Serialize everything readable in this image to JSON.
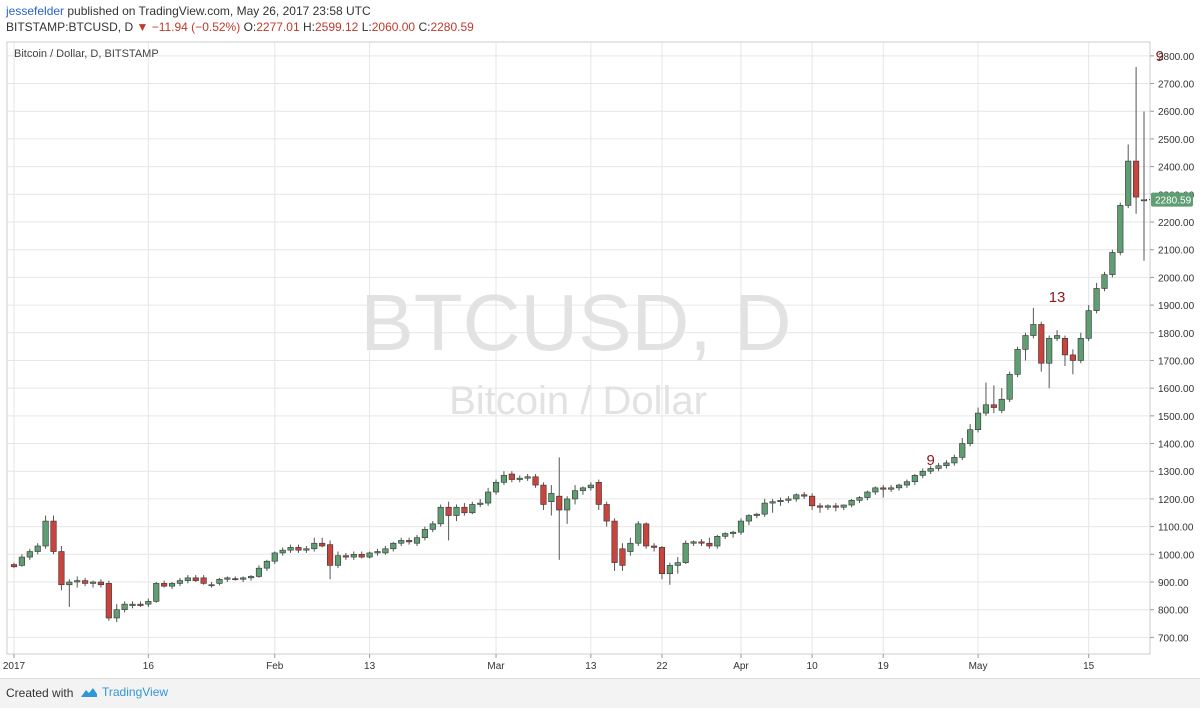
{
  "header": {
    "author": "jessefelder",
    "published": " published on TradingView.com, May 26, 2017 23:58 UTC",
    "symbol": "BITSTAMP:BTCUSD, D",
    "arrow": "▼",
    "change": "−11.94 (−0.52%)",
    "open_label": "O:",
    "open": "2277.01",
    "high_label": "H:",
    "high": "2599.12",
    "low_label": "L:",
    "low": "2060.00",
    "close_label": "C:",
    "close": "2280.59"
  },
  "footer": {
    "created_with": "Created with",
    "brand": "TradingView"
  },
  "colors": {
    "up": "#5f9e73",
    "down": "#c8443c",
    "wick": "#555555",
    "grid": "#e6e6e6",
    "label_accent": "#8b1a1a",
    "price_tag": "#5f9e73"
  },
  "chart_data": {
    "type": "candlestick",
    "title": "Bitcoin / Dollar, D, BITSTAMP",
    "watermark_main": "BTCUSD, D",
    "watermark_sub": "Bitcoin / Dollar",
    "ylim": [
      640,
      2850
    ],
    "y_ticks": [
      "700.00",
      "800.00",
      "900.00",
      "1000.00",
      "1100.00",
      "1200.00",
      "1300.00",
      "1400.00",
      "1500.00",
      "1600.00",
      "1700.00",
      "1800.00",
      "1900.00",
      "2000.00",
      "2100.00",
      "2200.00",
      "2300.00",
      "2400.00",
      "2500.00",
      "2600.00",
      "2700.00",
      "2800.00"
    ],
    "x_ticks": [
      {
        "label": "2017",
        "bar": 0
      },
      {
        "label": "16",
        "bar": 17
      },
      {
        "label": "Feb",
        "bar": 33
      },
      {
        "label": "13",
        "bar": 45
      },
      {
        "label": "Mar",
        "bar": 61
      },
      {
        "label": "13",
        "bar": 73
      },
      {
        "label": "22",
        "bar": 82
      },
      {
        "label": "Apr",
        "bar": 92
      },
      {
        "label": "10",
        "bar": 101
      },
      {
        "label": "19",
        "bar": 110
      },
      {
        "label": "May",
        "bar": 122
      },
      {
        "label": "15",
        "bar": 136
      }
    ],
    "last_price": "2280.59",
    "annotations": [
      {
        "text": "9",
        "bar": 116,
        "price": 1300
      },
      {
        "text": "13",
        "bar": 132,
        "price": 1890
      },
      {
        "text": "9",
        "bar": 145,
        "price": 2760
      }
    ],
    "candles": [
      {
        "o": 963,
        "h": 970,
        "l": 950,
        "c": 955
      },
      {
        "o": 960,
        "h": 1000,
        "l": 955,
        "c": 990
      },
      {
        "o": 990,
        "h": 1020,
        "l": 980,
        "c": 1010
      },
      {
        "o": 1010,
        "h": 1040,
        "l": 1000,
        "c": 1030
      },
      {
        "o": 1030,
        "h": 1140,
        "l": 1020,
        "c": 1120
      },
      {
        "o": 1120,
        "h": 1140,
        "l": 1000,
        "c": 1010
      },
      {
        "o": 1010,
        "h": 1030,
        "l": 870,
        "c": 890
      },
      {
        "o": 890,
        "h": 910,
        "l": 810,
        "c": 900
      },
      {
        "o": 900,
        "h": 920,
        "l": 880,
        "c": 905
      },
      {
        "o": 905,
        "h": 915,
        "l": 885,
        "c": 895
      },
      {
        "o": 895,
        "h": 905,
        "l": 880,
        "c": 900
      },
      {
        "o": 900,
        "h": 910,
        "l": 880,
        "c": 890
      },
      {
        "o": 895,
        "h": 905,
        "l": 760,
        "c": 770
      },
      {
        "o": 770,
        "h": 820,
        "l": 755,
        "c": 800
      },
      {
        "o": 800,
        "h": 830,
        "l": 790,
        "c": 820
      },
      {
        "o": 815,
        "h": 830,
        "l": 805,
        "c": 820
      },
      {
        "o": 820,
        "h": 830,
        "l": 810,
        "c": 815
      },
      {
        "o": 820,
        "h": 840,
        "l": 810,
        "c": 830
      },
      {
        "o": 830,
        "h": 900,
        "l": 825,
        "c": 895
      },
      {
        "o": 895,
        "h": 905,
        "l": 880,
        "c": 885
      },
      {
        "o": 885,
        "h": 900,
        "l": 875,
        "c": 895
      },
      {
        "o": 895,
        "h": 915,
        "l": 885,
        "c": 905
      },
      {
        "o": 905,
        "h": 925,
        "l": 895,
        "c": 915
      },
      {
        "o": 915,
        "h": 925,
        "l": 900,
        "c": 905
      },
      {
        "o": 915,
        "h": 925,
        "l": 890,
        "c": 895
      },
      {
        "o": 890,
        "h": 900,
        "l": 880,
        "c": 890
      },
      {
        "o": 895,
        "h": 915,
        "l": 888,
        "c": 910
      },
      {
        "o": 910,
        "h": 920,
        "l": 900,
        "c": 915
      },
      {
        "o": 912,
        "h": 920,
        "l": 905,
        "c": 910
      },
      {
        "o": 910,
        "h": 920,
        "l": 900,
        "c": 915
      },
      {
        "o": 915,
        "h": 925,
        "l": 905,
        "c": 920
      },
      {
        "o": 920,
        "h": 960,
        "l": 915,
        "c": 950
      },
      {
        "o": 950,
        "h": 980,
        "l": 940,
        "c": 975
      },
      {
        "o": 975,
        "h": 1010,
        "l": 965,
        "c": 1005
      },
      {
        "o": 1005,
        "h": 1025,
        "l": 995,
        "c": 1015
      },
      {
        "o": 1015,
        "h": 1035,
        "l": 1005,
        "c": 1025
      },
      {
        "o": 1025,
        "h": 1035,
        "l": 1005,
        "c": 1015
      },
      {
        "o": 1015,
        "h": 1030,
        "l": 1005,
        "c": 1020
      },
      {
        "o": 1020,
        "h": 1060,
        "l": 1010,
        "c": 1040
      },
      {
        "o": 1040,
        "h": 1060,
        "l": 1025,
        "c": 1030
      },
      {
        "o": 1035,
        "h": 1050,
        "l": 910,
        "c": 960
      },
      {
        "o": 960,
        "h": 1010,
        "l": 950,
        "c": 995
      },
      {
        "o": 995,
        "h": 1005,
        "l": 980,
        "c": 990
      },
      {
        "o": 990,
        "h": 1010,
        "l": 980,
        "c": 1000
      },
      {
        "o": 1000,
        "h": 1010,
        "l": 985,
        "c": 990
      },
      {
        "o": 990,
        "h": 1010,
        "l": 985,
        "c": 1005
      },
      {
        "o": 1005,
        "h": 1020,
        "l": 995,
        "c": 1010
      },
      {
        "o": 1005,
        "h": 1030,
        "l": 998,
        "c": 1020
      },
      {
        "o": 1020,
        "h": 1045,
        "l": 1010,
        "c": 1040
      },
      {
        "o": 1040,
        "h": 1060,
        "l": 1030,
        "c": 1050
      },
      {
        "o": 1050,
        "h": 1060,
        "l": 1035,
        "c": 1045
      },
      {
        "o": 1040,
        "h": 1070,
        "l": 1030,
        "c": 1060
      },
      {
        "o": 1060,
        "h": 1100,
        "l": 1050,
        "c": 1090
      },
      {
        "o": 1090,
        "h": 1120,
        "l": 1080,
        "c": 1110
      },
      {
        "o": 1110,
        "h": 1180,
        "l": 1100,
        "c": 1170
      },
      {
        "o": 1170,
        "h": 1190,
        "l": 1050,
        "c": 1140
      },
      {
        "o": 1140,
        "h": 1180,
        "l": 1120,
        "c": 1170
      },
      {
        "o": 1170,
        "h": 1185,
        "l": 1140,
        "c": 1150
      },
      {
        "o": 1150,
        "h": 1190,
        "l": 1145,
        "c": 1180
      },
      {
        "o": 1180,
        "h": 1200,
        "l": 1170,
        "c": 1185
      },
      {
        "o": 1185,
        "h": 1240,
        "l": 1175,
        "c": 1225
      },
      {
        "o": 1225,
        "h": 1270,
        "l": 1215,
        "c": 1260
      },
      {
        "o": 1260,
        "h": 1300,
        "l": 1250,
        "c": 1285
      },
      {
        "o": 1290,
        "h": 1300,
        "l": 1260,
        "c": 1270
      },
      {
        "o": 1270,
        "h": 1285,
        "l": 1260,
        "c": 1275
      },
      {
        "o": 1275,
        "h": 1290,
        "l": 1265,
        "c": 1280
      },
      {
        "o": 1280,
        "h": 1290,
        "l": 1240,
        "c": 1250
      },
      {
        "o": 1250,
        "h": 1260,
        "l": 1160,
        "c": 1180
      },
      {
        "o": 1190,
        "h": 1250,
        "l": 1140,
        "c": 1220
      },
      {
        "o": 1210,
        "h": 1350,
        "l": 980,
        "c": 1160
      },
      {
        "o": 1160,
        "h": 1210,
        "l": 1110,
        "c": 1200
      },
      {
        "o": 1200,
        "h": 1250,
        "l": 1180,
        "c": 1230
      },
      {
        "o": 1230,
        "h": 1245,
        "l": 1215,
        "c": 1240
      },
      {
        "o": 1240,
        "h": 1260,
        "l": 1230,
        "c": 1250
      },
      {
        "o": 1260,
        "h": 1270,
        "l": 1160,
        "c": 1180
      },
      {
        "o": 1180,
        "h": 1190,
        "l": 1100,
        "c": 1120
      },
      {
        "o": 1120,
        "h": 1130,
        "l": 940,
        "c": 970
      },
      {
        "o": 1020,
        "h": 1040,
        "l": 940,
        "c": 960
      },
      {
        "o": 1010,
        "h": 1060,
        "l": 995,
        "c": 1040
      },
      {
        "o": 1040,
        "h": 1120,
        "l": 1030,
        "c": 1110
      },
      {
        "o": 1110,
        "h": 1115,
        "l": 1020,
        "c": 1030
      },
      {
        "o": 1030,
        "h": 1040,
        "l": 1010,
        "c": 1025
      },
      {
        "o": 1025,
        "h": 1030,
        "l": 910,
        "c": 930
      },
      {
        "o": 930,
        "h": 970,
        "l": 890,
        "c": 960
      },
      {
        "o": 960,
        "h": 990,
        "l": 930,
        "c": 970
      },
      {
        "o": 970,
        "h": 1050,
        "l": 965,
        "c": 1040
      },
      {
        "o": 1040,
        "h": 1050,
        "l": 1030,
        "c": 1045
      },
      {
        "o": 1045,
        "h": 1055,
        "l": 1030,
        "c": 1040
      },
      {
        "o": 1040,
        "h": 1060,
        "l": 1020,
        "c": 1030
      },
      {
        "o": 1030,
        "h": 1070,
        "l": 1020,
        "c": 1065
      },
      {
        "o": 1065,
        "h": 1080,
        "l": 1055,
        "c": 1075
      },
      {
        "o": 1075,
        "h": 1085,
        "l": 1060,
        "c": 1080
      },
      {
        "o": 1080,
        "h": 1130,
        "l": 1070,
        "c": 1120
      },
      {
        "o": 1120,
        "h": 1145,
        "l": 1105,
        "c": 1140
      },
      {
        "o": 1140,
        "h": 1150,
        "l": 1130,
        "c": 1145
      },
      {
        "o": 1145,
        "h": 1200,
        "l": 1135,
        "c": 1185
      },
      {
        "o": 1185,
        "h": 1200,
        "l": 1150,
        "c": 1190
      },
      {
        "o": 1190,
        "h": 1205,
        "l": 1175,
        "c": 1195
      },
      {
        "o": 1195,
        "h": 1210,
        "l": 1185,
        "c": 1200
      },
      {
        "o": 1200,
        "h": 1220,
        "l": 1190,
        "c": 1215
      },
      {
        "o": 1215,
        "h": 1225,
        "l": 1200,
        "c": 1210
      },
      {
        "o": 1210,
        "h": 1220,
        "l": 1160,
        "c": 1175
      },
      {
        "o": 1175,
        "h": 1185,
        "l": 1150,
        "c": 1170
      },
      {
        "o": 1170,
        "h": 1180,
        "l": 1160,
        "c": 1175
      },
      {
        "o": 1175,
        "h": 1185,
        "l": 1155,
        "c": 1170
      },
      {
        "o": 1170,
        "h": 1180,
        "l": 1160,
        "c": 1178
      },
      {
        "o": 1178,
        "h": 1200,
        "l": 1170,
        "c": 1195
      },
      {
        "o": 1195,
        "h": 1210,
        "l": 1185,
        "c": 1205
      },
      {
        "o": 1205,
        "h": 1230,
        "l": 1195,
        "c": 1225
      },
      {
        "o": 1225,
        "h": 1245,
        "l": 1215,
        "c": 1240
      },
      {
        "o": 1240,
        "h": 1250,
        "l": 1205,
        "c": 1235
      },
      {
        "o": 1235,
        "h": 1250,
        "l": 1225,
        "c": 1240
      },
      {
        "o": 1240,
        "h": 1255,
        "l": 1230,
        "c": 1250
      },
      {
        "o": 1250,
        "h": 1270,
        "l": 1240,
        "c": 1262
      },
      {
        "o": 1262,
        "h": 1290,
        "l": 1250,
        "c": 1285
      },
      {
        "o": 1285,
        "h": 1310,
        "l": 1275,
        "c": 1300
      },
      {
        "o": 1300,
        "h": 1320,
        "l": 1290,
        "c": 1310
      },
      {
        "o": 1310,
        "h": 1330,
        "l": 1300,
        "c": 1320
      },
      {
        "o": 1320,
        "h": 1340,
        "l": 1310,
        "c": 1330
      },
      {
        "o": 1330,
        "h": 1360,
        "l": 1320,
        "c": 1350
      },
      {
        "o": 1350,
        "h": 1420,
        "l": 1340,
        "c": 1400
      },
      {
        "o": 1400,
        "h": 1470,
        "l": 1390,
        "c": 1450
      },
      {
        "o": 1450,
        "h": 1530,
        "l": 1440,
        "c": 1510
      },
      {
        "o": 1510,
        "h": 1620,
        "l": 1500,
        "c": 1540
      },
      {
        "o": 1540,
        "h": 1610,
        "l": 1510,
        "c": 1530
      },
      {
        "o": 1520,
        "h": 1600,
        "l": 1510,
        "c": 1560
      },
      {
        "o": 1560,
        "h": 1660,
        "l": 1550,
        "c": 1650
      },
      {
        "o": 1650,
        "h": 1750,
        "l": 1640,
        "c": 1740
      },
      {
        "o": 1740,
        "h": 1800,
        "l": 1700,
        "c": 1790
      },
      {
        "o": 1790,
        "h": 1890,
        "l": 1780,
        "c": 1830
      },
      {
        "o": 1830,
        "h": 1840,
        "l": 1660,
        "c": 1690
      },
      {
        "o": 1690,
        "h": 1790,
        "l": 1600,
        "c": 1780
      },
      {
        "o": 1780,
        "h": 1810,
        "l": 1770,
        "c": 1790
      },
      {
        "o": 1780,
        "h": 1790,
        "l": 1680,
        "c": 1720
      },
      {
        "o": 1720,
        "h": 1740,
        "l": 1650,
        "c": 1700
      },
      {
        "o": 1700,
        "h": 1800,
        "l": 1690,
        "c": 1780
      },
      {
        "o": 1780,
        "h": 1900,
        "l": 1770,
        "c": 1880
      },
      {
        "o": 1880,
        "h": 1980,
        "l": 1870,
        "c": 1960
      },
      {
        "o": 1960,
        "h": 2020,
        "l": 1950,
        "c": 2010
      },
      {
        "o": 2010,
        "h": 2100,
        "l": 2000,
        "c": 2090
      },
      {
        "o": 2090,
        "h": 2270,
        "l": 2080,
        "c": 2260
      },
      {
        "o": 2260,
        "h": 2480,
        "l": 2250,
        "c": 2420
      },
      {
        "o": 2420,
        "h": 2760,
        "l": 2230,
        "c": 2290
      },
      {
        "o": 2277,
        "h": 2599,
        "l": 2060,
        "c": 2280
      }
    ]
  }
}
